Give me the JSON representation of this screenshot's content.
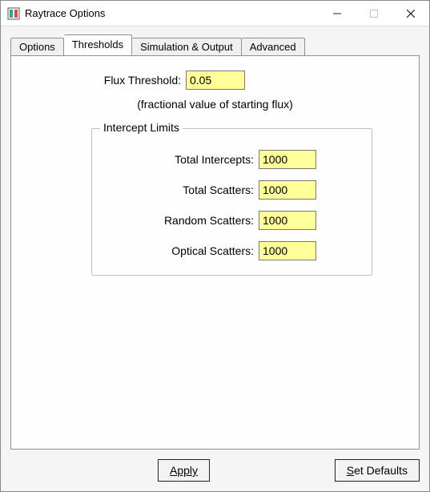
{
  "window": {
    "title": "Raytrace Options"
  },
  "tabs": [
    {
      "label": "Options",
      "active": false
    },
    {
      "label": "Thresholds",
      "active": true
    },
    {
      "label": "Simulation & Output",
      "active": false
    },
    {
      "label": "Advanced",
      "active": false
    }
  ],
  "thresholds": {
    "flux_label": "Flux Threshold:",
    "flux_value": "0.05",
    "flux_hint": "(fractional value of starting flux)",
    "group_title": "Intercept Limits",
    "fields": {
      "total_intercepts": {
        "label": "Total Intercepts:",
        "value": "1000"
      },
      "total_scatters": {
        "label": "Total Scatters:",
        "value": "1000"
      },
      "random_scatters": {
        "label": "Random Scatters:",
        "value": "1000"
      },
      "optical_scatters": {
        "label": "Optical Scatters:",
        "value": "1000"
      }
    }
  },
  "buttons": {
    "apply": "Apply",
    "set_defaults": "Set Defaults"
  },
  "colors": {
    "input_bg": "#ffff99",
    "window_bg": "#f5f5f5",
    "tabpage_bg": "#fefefe",
    "border": "#919191"
  }
}
